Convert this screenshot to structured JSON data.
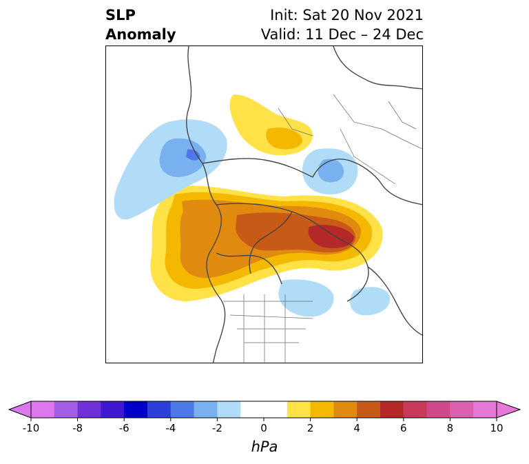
{
  "title": {
    "variable": "SLP",
    "kind": "Anomaly",
    "init": "Init: Sat 20 Nov 2021",
    "valid": "Valid: 11 Dec – 24 Dec"
  },
  "colorbar": {
    "unit": "hPa",
    "range": [
      -10,
      10
    ],
    "ticks": [
      "-10",
      "-8",
      "-6",
      "-4",
      "-2",
      "0",
      "2",
      "4",
      "6",
      "8",
      "10"
    ],
    "colors": [
      "#dd77ee",
      "#a35ce6",
      "#7030d8",
      "#4018d0",
      "#0000c8",
      "#2a40d8",
      "#4f78e8",
      "#78b0f0",
      "#b0dcf8",
      "#ffffff",
      "#ffffff",
      "#ffe248",
      "#f4b800",
      "#e08a10",
      "#c85a18",
      "#b42828",
      "#c83a5a",
      "#d04a8a",
      "#dc60b0",
      "#e878d8"
    ],
    "overflow_colors": {
      "low": "#dd77ee",
      "high": "#e878d8"
    }
  }
}
